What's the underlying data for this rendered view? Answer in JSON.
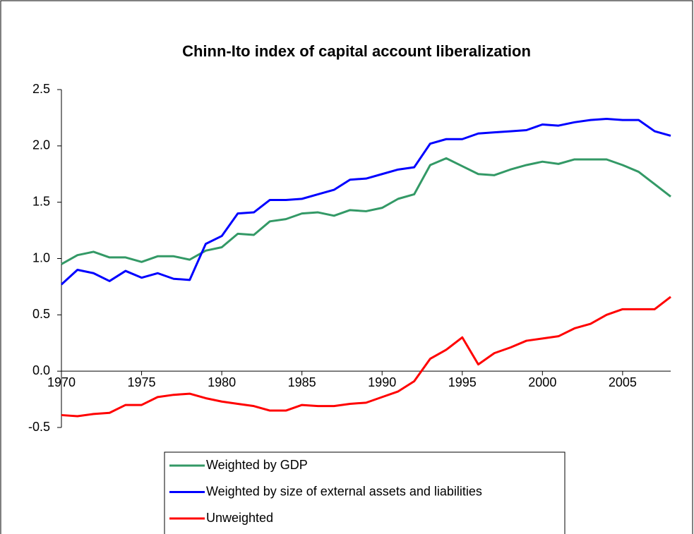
{
  "chart_data": {
    "type": "line",
    "title": "Chinn-Ito index of capital account liberalization",
    "x": [
      1970,
      1971,
      1972,
      1973,
      1974,
      1975,
      1976,
      1977,
      1978,
      1979,
      1980,
      1981,
      1982,
      1983,
      1984,
      1985,
      1986,
      1987,
      1988,
      1989,
      1990,
      1991,
      1992,
      1993,
      1994,
      1995,
      1996,
      1997,
      1998,
      1999,
      2000,
      2001,
      2002,
      2003,
      2004,
      2005,
      2006,
      2007,
      2008
    ],
    "series": [
      {
        "name": "Weighted by GDP",
        "color": "#339966",
        "values": [
          0.95,
          1.03,
          1.06,
          1.01,
          1.01,
          0.97,
          1.02,
          1.02,
          0.99,
          1.07,
          1.1,
          1.22,
          1.21,
          1.33,
          1.35,
          1.4,
          1.41,
          1.38,
          1.43,
          1.42,
          1.45,
          1.53,
          1.57,
          1.83,
          1.89,
          1.82,
          1.75,
          1.74,
          1.79,
          1.83,
          1.86,
          1.84,
          1.88,
          1.88,
          1.88,
          1.83,
          1.77,
          1.66,
          1.55
        ]
      },
      {
        "name": "Weighted by size of external assets and liabilities",
        "color": "#0000ff",
        "values": [
          0.77,
          0.9,
          0.87,
          0.8,
          0.89,
          0.83,
          0.87,
          0.82,
          0.81,
          1.13,
          1.2,
          1.4,
          1.41,
          1.52,
          1.52,
          1.53,
          1.57,
          1.61,
          1.7,
          1.71,
          1.75,
          1.79,
          1.81,
          2.02,
          2.06,
          2.06,
          2.11,
          2.12,
          2.13,
          2.14,
          2.19,
          2.18,
          2.21,
          2.23,
          2.24,
          2.23,
          2.23,
          2.13,
          2.09
        ]
      },
      {
        "name": "Unweighted",
        "color": "#ff0000",
        "values": [
          -0.39,
          -0.4,
          -0.38,
          -0.37,
          -0.3,
          -0.3,
          -0.23,
          -0.21,
          -0.2,
          -0.24,
          -0.27,
          -0.29,
          -0.31,
          -0.35,
          -0.35,
          -0.3,
          -0.31,
          -0.31,
          -0.29,
          -0.28,
          -0.23,
          -0.18,
          -0.09,
          0.11,
          0.19,
          0.3,
          0.06,
          0.16,
          0.21,
          0.27,
          0.29,
          0.31,
          0.38,
          0.42,
          0.5,
          0.55,
          0.55,
          0.55,
          0.66
        ]
      }
    ],
    "xlim": [
      1970,
      2008
    ],
    "xticks": [
      1970,
      1975,
      1980,
      1985,
      1990,
      1995,
      2000,
      2005
    ],
    "ylim": [
      -0.5,
      2.5
    ],
    "yticks": [
      -0.5,
      {
        "value": 0,
        "label": "0.0"
      },
      0.5,
      {
        "value": 1,
        "label": "1.0"
      },
      1.5,
      {
        "value": 2,
        "label": "2.0"
      },
      2.5
    ]
  }
}
